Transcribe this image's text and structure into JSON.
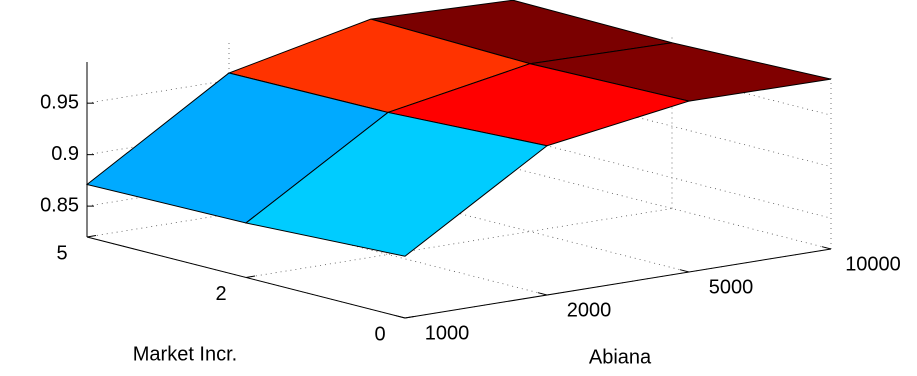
{
  "chart_data": {
    "type": "surface3d",
    "x_label": "Abiana",
    "y_label": "Market Incr.",
    "x_categories": [
      "1000",
      "2000",
      "5000",
      "10000"
    ],
    "y_categories": [
      "0",
      "2",
      "5"
    ],
    "values": [
      [
        0.88,
        0.965,
        0.986,
        0.985
      ],
      [
        0.873,
        0.958,
        0.983,
        0.981
      ],
      [
        0.871,
        0.957,
        0.987,
        0.983
      ]
    ],
    "colors": [
      [
        "#00ccff",
        "#ff0000",
        "#800000"
      ],
      [
        "#00aaff",
        "#ff3300",
        "#7a0000"
      ]
    ],
    "zlim": [
      0.82,
      0.99
    ],
    "zticks": [
      0.85,
      0.9,
      0.95
    ],
    "grid": true
  }
}
